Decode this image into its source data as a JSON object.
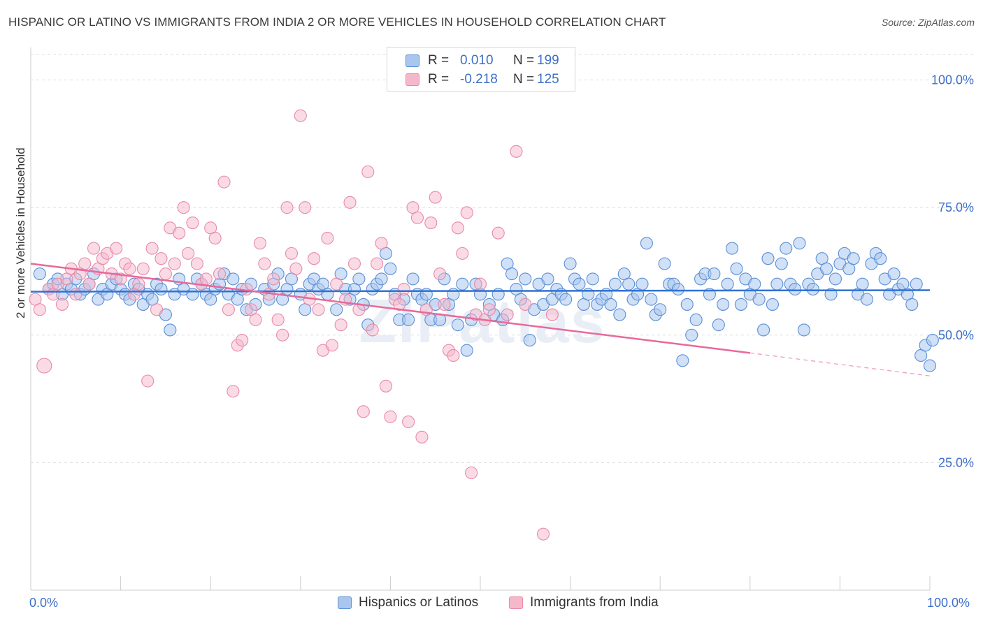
{
  "title": "HISPANIC OR LATINO VS IMMIGRANTS FROM INDIA 2 OR MORE VEHICLES IN HOUSEHOLD CORRELATION CHART",
  "source": "Source: ZipAtlas.com",
  "watermark": "ZIPatlas",
  "legend": {
    "series1": {
      "r_label": "R =",
      "r_value": "0.010",
      "n_label": "N =",
      "n_value": "199"
    },
    "series2": {
      "r_label": "R =",
      "r_value": "-0.218",
      "n_label": "N =",
      "n_value": "125"
    }
  },
  "bottom_legend": [
    "Hispanics or Latinos",
    "Immigrants from India"
  ],
  "colors": {
    "blue_fill": "#a9c6ee",
    "blue_stroke": "#5b8fd6",
    "blue_line": "#2f72d4",
    "pink_fill": "#f5b8cb",
    "pink_stroke": "#e88aa8",
    "pink_line": "#e8699a",
    "accent_text": "#3d6fc9",
    "grid": "#dddddd"
  },
  "chart_data": {
    "type": "scatter",
    "title": "HISPANIC OR LATINO VS IMMIGRANTS FROM INDIA 2 OR MORE VEHICLES IN HOUSEHOLD CORRELATION CHART",
    "xlabel": "",
    "ylabel": "2 or more Vehicles in Household",
    "xlim": [
      0,
      100
    ],
    "ylim": [
      0,
      105
    ],
    "x_tick_labels": [
      "0.0%",
      "100.0%"
    ],
    "y_ticks": [
      25,
      50,
      75,
      100
    ],
    "y_tick_labels": [
      "25.0%",
      "50.0%",
      "75.0%",
      "100.0%"
    ],
    "grid": "horizontal dashed",
    "legend_position": "top-center",
    "series": [
      {
        "name": "Hispanics or Latinos",
        "r": 0.01,
        "n": 199,
        "trend": {
          "x": [
            0,
            100
          ],
          "y": [
            58.5,
            58.8
          ]
        },
        "points": [
          [
            1,
            62
          ],
          [
            2,
            59
          ],
          [
            2.5,
            60
          ],
          [
            3,
            61
          ],
          [
            3.5,
            58
          ],
          [
            4,
            60
          ],
          [
            4.5,
            59
          ],
          [
            5,
            61
          ],
          [
            5.5,
            58
          ],
          [
            6,
            59
          ],
          [
            6.5,
            60
          ],
          [
            7,
            62
          ],
          [
            7.5,
            57
          ],
          [
            8,
            59
          ],
          [
            8.5,
            58
          ],
          [
            9,
            60
          ],
          [
            9.5,
            61
          ],
          [
            10,
            59
          ],
          [
            10.5,
            58
          ],
          [
            11,
            57
          ],
          [
            11.5,
            60
          ],
          [
            12,
            59
          ],
          [
            12.5,
            56
          ],
          [
            13,
            58
          ],
          [
            13.5,
            57
          ],
          [
            14,
            60
          ],
          [
            14.5,
            59
          ],
          [
            15,
            54
          ],
          [
            15.5,
            51
          ],
          [
            16,
            58
          ],
          [
            16.5,
            61
          ],
          [
            17,
            59
          ],
          [
            18,
            58
          ],
          [
            18.5,
            61
          ],
          [
            19,
            60
          ],
          [
            19.5,
            58
          ],
          [
            20,
            57
          ],
          [
            20.5,
            59
          ],
          [
            21,
            60
          ],
          [
            21.5,
            62
          ],
          [
            22,
            58
          ],
          [
            22.5,
            61
          ],
          [
            23,
            57
          ],
          [
            23.5,
            59
          ],
          [
            24,
            55
          ],
          [
            24.5,
            60
          ],
          [
            25,
            56
          ],
          [
            26,
            59
          ],
          [
            26.5,
            57
          ],
          [
            27,
            60
          ],
          [
            27.5,
            62
          ],
          [
            28,
            57
          ],
          [
            28.5,
            59
          ],
          [
            29,
            61
          ],
          [
            30,
            58
          ],
          [
            30.5,
            55
          ],
          [
            31,
            60
          ],
          [
            31.5,
            61
          ],
          [
            32,
            59
          ],
          [
            32.5,
            60
          ],
          [
            33,
            58
          ],
          [
            34,
            55
          ],
          [
            34.5,
            62
          ],
          [
            35,
            59
          ],
          [
            35.5,
            57
          ],
          [
            36,
            59
          ],
          [
            36.5,
            61
          ],
          [
            37,
            56
          ],
          [
            37.5,
            52
          ],
          [
            38,
            59
          ],
          [
            38.5,
            60
          ],
          [
            39,
            61
          ],
          [
            39.5,
            66
          ],
          [
            40,
            63
          ],
          [
            40.5,
            58
          ],
          [
            41,
            53
          ],
          [
            41.5,
            57
          ],
          [
            42,
            53
          ],
          [
            42.5,
            61
          ],
          [
            43,
            58
          ],
          [
            43.5,
            57
          ],
          [
            44,
            58
          ],
          [
            44.5,
            53
          ],
          [
            45,
            56
          ],
          [
            45.5,
            53
          ],
          [
            46,
            61
          ],
          [
            46.5,
            56
          ],
          [
            47,
            58
          ],
          [
            47.5,
            52
          ],
          [
            48,
            60
          ],
          [
            48.5,
            47
          ],
          [
            49,
            53
          ],
          [
            49.5,
            60
          ],
          [
            50,
            58
          ],
          [
            51,
            56
          ],
          [
            51.5,
            54
          ],
          [
            52,
            58
          ],
          [
            52.5,
            53
          ],
          [
            53,
            64
          ],
          [
            53.5,
            62
          ],
          [
            54,
            59
          ],
          [
            54.5,
            57
          ],
          [
            55,
            61
          ],
          [
            55.5,
            49
          ],
          [
            56,
            55
          ],
          [
            56.5,
            60
          ],
          [
            57,
            56
          ],
          [
            57.5,
            61
          ],
          [
            58,
            57
          ],
          [
            58.5,
            59
          ],
          [
            59,
            58
          ],
          [
            59.5,
            57
          ],
          [
            60,
            64
          ],
          [
            60.5,
            61
          ],
          [
            61,
            60
          ],
          [
            61.5,
            56
          ],
          [
            62,
            58
          ],
          [
            62.5,
            61
          ],
          [
            63,
            56
          ],
          [
            63.5,
            57
          ],
          [
            64,
            58
          ],
          [
            64.5,
            56
          ],
          [
            65,
            60
          ],
          [
            65.5,
            54
          ],
          [
            66,
            62
          ],
          [
            66.5,
            60
          ],
          [
            67,
            57
          ],
          [
            67.5,
            58
          ],
          [
            68,
            60
          ],
          [
            68.5,
            68
          ],
          [
            69,
            57
          ],
          [
            69.5,
            54
          ],
          [
            70,
            55
          ],
          [
            70.5,
            64
          ],
          [
            71,
            60
          ],
          [
            71.5,
            60
          ],
          [
            72,
            59
          ],
          [
            72.5,
            45
          ],
          [
            73,
            56
          ],
          [
            73.5,
            50
          ],
          [
            74,
            53
          ],
          [
            74.5,
            61
          ],
          [
            75,
            62
          ],
          [
            75.5,
            58
          ],
          [
            76,
            62
          ],
          [
            76.5,
            52
          ],
          [
            77,
            56
          ],
          [
            77.5,
            60
          ],
          [
            78,
            67
          ],
          [
            78.5,
            63
          ],
          [
            79,
            56
          ],
          [
            79.5,
            61
          ],
          [
            80,
            58
          ],
          [
            80.5,
            60
          ],
          [
            81,
            57
          ],
          [
            81.5,
            51
          ],
          [
            82,
            65
          ],
          [
            82.5,
            56
          ],
          [
            83,
            60
          ],
          [
            83.5,
            64
          ],
          [
            84,
            67
          ],
          [
            84.5,
            60
          ],
          [
            85,
            59
          ],
          [
            85.5,
            68
          ],
          [
            86,
            51
          ],
          [
            86.5,
            60
          ],
          [
            87,
            59
          ],
          [
            87.5,
            62
          ],
          [
            88,
            65
          ],
          [
            88.5,
            63
          ],
          [
            89,
            58
          ],
          [
            89.5,
            61
          ],
          [
            90,
            64
          ],
          [
            90.5,
            66
          ],
          [
            91,
            63
          ],
          [
            91.5,
            65
          ],
          [
            92,
            58
          ],
          [
            92.5,
            60
          ],
          [
            93,
            57
          ],
          [
            93.5,
            64
          ],
          [
            94,
            66
          ],
          [
            94.5,
            65
          ],
          [
            95,
            61
          ],
          [
            95.5,
            58
          ],
          [
            96,
            62
          ],
          [
            96.5,
            59
          ],
          [
            97,
            60
          ],
          [
            97.5,
            58
          ],
          [
            98,
            56
          ],
          [
            98.5,
            60
          ],
          [
            99,
            46
          ],
          [
            99.5,
            48
          ],
          [
            100,
            44
          ],
          [
            100.3,
            49
          ]
        ]
      },
      {
        "name": "Immigrants from India",
        "r": -0.218,
        "n": 125,
        "trend": {
          "x": [
            0,
            80
          ],
          "y": [
            64,
            46.5
          ]
        },
        "trend_dashed": {
          "x": [
            80,
            100
          ],
          "y": [
            46.5,
            42
          ]
        },
        "points": [
          [
            0.5,
            57
          ],
          [
            1,
            55
          ],
          [
            1.5,
            44
          ],
          [
            2,
            59
          ],
          [
            2.5,
            58
          ],
          [
            3,
            60
          ],
          [
            3.5,
            56
          ],
          [
            4,
            61
          ],
          [
            4.5,
            63
          ],
          [
            5,
            58
          ],
          [
            5.5,
            62
          ],
          [
            6,
            64
          ],
          [
            6.5,
            60
          ],
          [
            7,
            67
          ],
          [
            7.5,
            63
          ],
          [
            8,
            65
          ],
          [
            8.5,
            66
          ],
          [
            9,
            62
          ],
          [
            9.5,
            67
          ],
          [
            10,
            61
          ],
          [
            10.5,
            64
          ],
          [
            11,
            63
          ],
          [
            11.5,
            58
          ],
          [
            12,
            60
          ],
          [
            12.5,
            63
          ],
          [
            13,
            41
          ],
          [
            13.5,
            67
          ],
          [
            14,
            55
          ],
          [
            14.5,
            65
          ],
          [
            15,
            62
          ],
          [
            15.5,
            71
          ],
          [
            16,
            64
          ],
          [
            16.5,
            70
          ],
          [
            17,
            75
          ],
          [
            17.5,
            66
          ],
          [
            18,
            72
          ],
          [
            18.5,
            64
          ],
          [
            19,
            60
          ],
          [
            19.5,
            61
          ],
          [
            20,
            71
          ],
          [
            20.5,
            69
          ],
          [
            21,
            62
          ],
          [
            21.5,
            80
          ],
          [
            22,
            55
          ],
          [
            22.5,
            39
          ],
          [
            23,
            48
          ],
          [
            23.5,
            49
          ],
          [
            24,
            59
          ],
          [
            24.5,
            55
          ],
          [
            25,
            53
          ],
          [
            25.5,
            68
          ],
          [
            26,
            64
          ],
          [
            26.5,
            58
          ],
          [
            27,
            61
          ],
          [
            27.5,
            53
          ],
          [
            28,
            50
          ],
          [
            28.5,
            75
          ],
          [
            29,
            66
          ],
          [
            29.5,
            63
          ],
          [
            30,
            93
          ],
          [
            30.5,
            75
          ],
          [
            31,
            57
          ],
          [
            31.5,
            65
          ],
          [
            32,
            55
          ],
          [
            32.5,
            47
          ],
          [
            33,
            69
          ],
          [
            33.5,
            48
          ],
          [
            34,
            60
          ],
          [
            34.5,
            52
          ],
          [
            35,
            57
          ],
          [
            35.5,
            76
          ],
          [
            36,
            64
          ],
          [
            36.5,
            55
          ],
          [
            37,
            35
          ],
          [
            37.5,
            82
          ],
          [
            38,
            51
          ],
          [
            38.5,
            64
          ],
          [
            39,
            68
          ],
          [
            39.5,
            40
          ],
          [
            40,
            34
          ],
          [
            40.5,
            57
          ],
          [
            41,
            56
          ],
          [
            41.5,
            59
          ],
          [
            42,
            33
          ],
          [
            42.5,
            75
          ],
          [
            43,
            73
          ],
          [
            43.5,
            30
          ],
          [
            44,
            55
          ],
          [
            44.5,
            72
          ],
          [
            45,
            77
          ],
          [
            45.5,
            62
          ],
          [
            46,
            56
          ],
          [
            46.5,
            47
          ],
          [
            47,
            46
          ],
          [
            47.5,
            71
          ],
          [
            48,
            66
          ],
          [
            48.5,
            74
          ],
          [
            49,
            23
          ],
          [
            49.5,
            54
          ],
          [
            50,
            60
          ],
          [
            50.5,
            53
          ],
          [
            51,
            55
          ],
          [
            52,
            70
          ],
          [
            53,
            54
          ],
          [
            54,
            86
          ],
          [
            55,
            56
          ],
          [
            57,
            11
          ],
          [
            58,
            54
          ]
        ]
      }
    ]
  }
}
